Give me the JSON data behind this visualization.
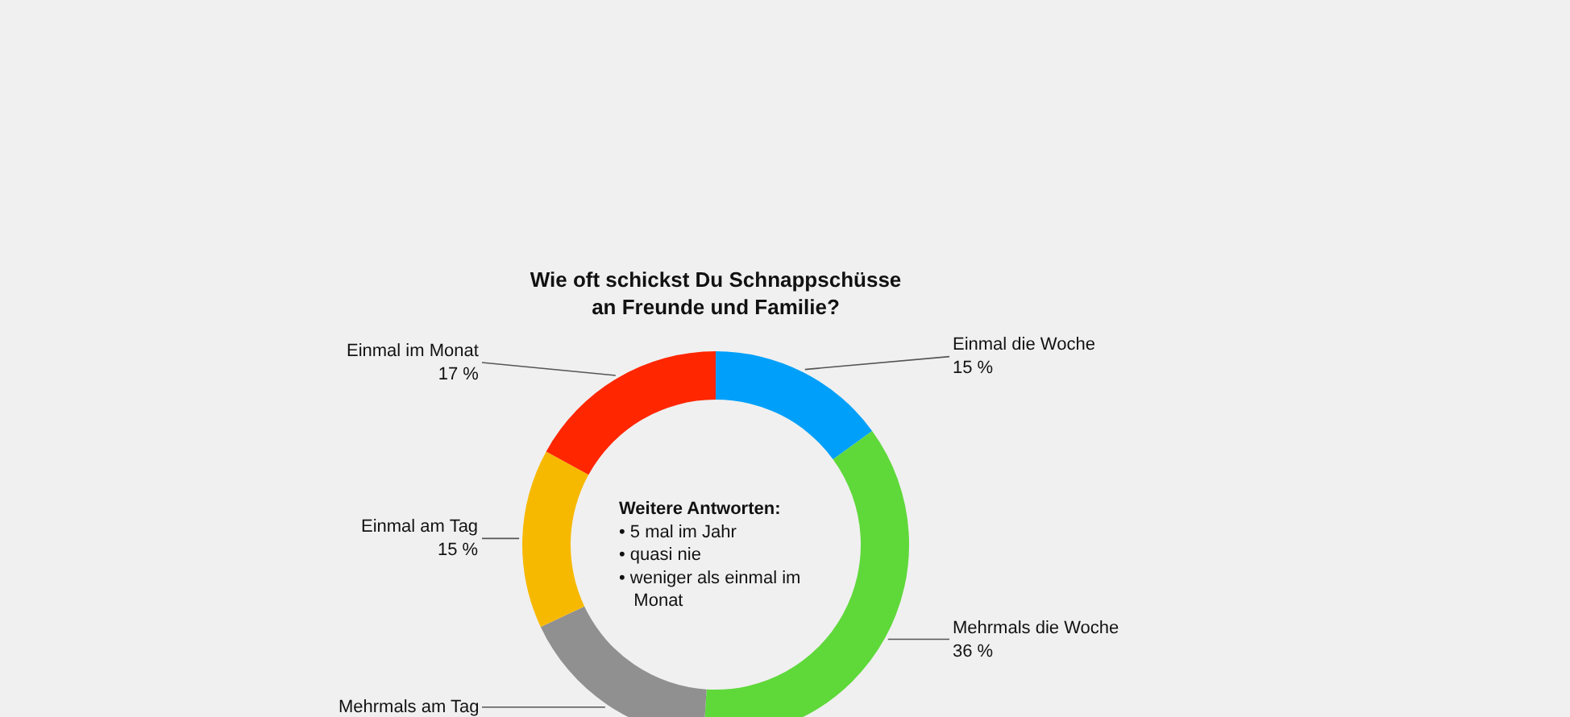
{
  "chart_data": {
    "type": "donut",
    "title": "Wie oft schickst Du Schnappschüsse\nan Freunde und Familie?",
    "categories": [
      "Einmal die Woche",
      "Mehrmals die Woche",
      "Mehrmals am Tag",
      "Einmal am Tag",
      "Einmal im Monat"
    ],
    "values": [
      15,
      36,
      17,
      15,
      17
    ],
    "value_labels": [
      "15 %",
      "36 %",
      null,
      "15 %",
      "17 %"
    ],
    "colors": [
      "#00a0fa",
      "#5fd83a",
      "#909090",
      "#f7b900",
      "#ff2600"
    ],
    "annotations": [
      "Weitere Antworten:\n• 5 mal im Jahr\n• quasi nie\n• weniger als einmal im\n   Monat"
    ],
    "legend": false
  }
}
